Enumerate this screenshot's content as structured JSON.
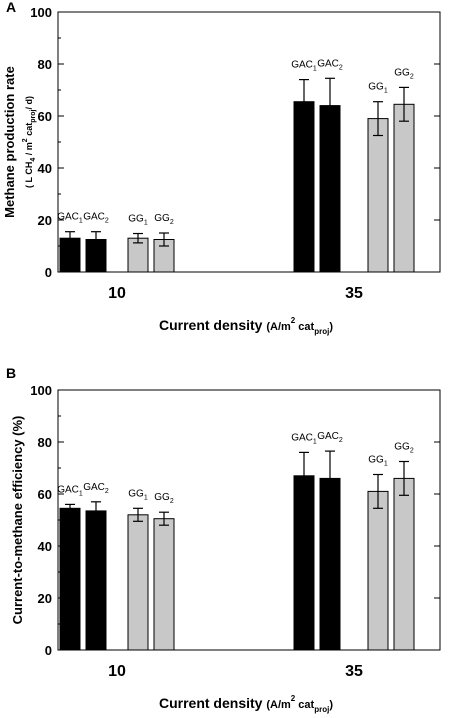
{
  "chart_data": [
    {
      "type": "bar",
      "panel": "A",
      "categories": [
        "10",
        "35"
      ],
      "bar_labels": [
        {
          "base": "GAC",
          "sub": "1"
        },
        {
          "base": "GAC",
          "sub": "2"
        },
        {
          "base": "GG",
          "sub": "1"
        },
        {
          "base": "GG",
          "sub": "2"
        }
      ],
      "series": [
        {
          "name": "GAC1",
          "color": "#000000",
          "values": [
            13,
            65.5
          ],
          "errors": [
            2.5,
            8.5
          ]
        },
        {
          "name": "GAC2",
          "color": "#000000",
          "values": [
            12.5,
            64
          ],
          "errors": [
            3,
            10.5
          ]
        },
        {
          "name": "GG1",
          "color": "#c8c8c8",
          "values": [
            13,
            59
          ],
          "errors": [
            1.8,
            6.5
          ]
        },
        {
          "name": "GG2",
          "color": "#c8c8c8",
          "values": [
            12.5,
            64.5
          ],
          "errors": [
            2.5,
            6.5
          ]
        }
      ],
      "yticks": [
        "0",
        "20",
        "40",
        "60",
        "80",
        "100"
      ],
      "ylim": [
        0,
        100
      ],
      "ylabel_line1": "Methane production rate",
      "ylabel_line2": "( L CH",
      "ylabel_sub4": "4",
      "ylabel_mid": " / m",
      "ylabel_sup2": "2",
      "ylabel_cat": " cat",
      "ylabel_subproj": "proj",
      "ylabel_end": "/ d)",
      "xlabel_main": "Current density",
      "xlabel_unit": "(A/m",
      "xlabel_sup": "2",
      "xlabel_cat": " cat",
      "xlabel_sub": "proj",
      "xlabel_close": ")"
    },
    {
      "type": "bar",
      "panel": "B",
      "categories": [
        "10",
        "35"
      ],
      "bar_labels": [
        {
          "base": "GAC",
          "sub": "1"
        },
        {
          "base": "GAC",
          "sub": "2"
        },
        {
          "base": "GG",
          "sub": "1"
        },
        {
          "base": "GG",
          "sub": "2"
        }
      ],
      "series": [
        {
          "name": "GAC1",
          "color": "#000000",
          "values": [
            54.5,
            67
          ],
          "errors": [
            1.5,
            9
          ]
        },
        {
          "name": "GAC2",
          "color": "#000000",
          "values": [
            53.5,
            66
          ],
          "errors": [
            3.5,
            10.5
          ]
        },
        {
          "name": "GG1",
          "color": "#c8c8c8",
          "values": [
            52,
            61
          ],
          "errors": [
            2.5,
            6.5
          ]
        },
        {
          "name": "GG2",
          "color": "#c8c8c8",
          "values": [
            50.5,
            66
          ],
          "errors": [
            2.5,
            6.5
          ]
        }
      ],
      "yticks": [
        "0",
        "20",
        "40",
        "60",
        "80",
        "100"
      ],
      "ylim": [
        0,
        100
      ],
      "ylabel_line1": "Current-to-methane efficiency (%)",
      "xlabel_main": "Current density",
      "xlabel_unit": "(A/m",
      "xlabel_sup": "2",
      "xlabel_cat": " cat",
      "xlabel_sub": "proj",
      "xlabel_close": ")"
    }
  ]
}
